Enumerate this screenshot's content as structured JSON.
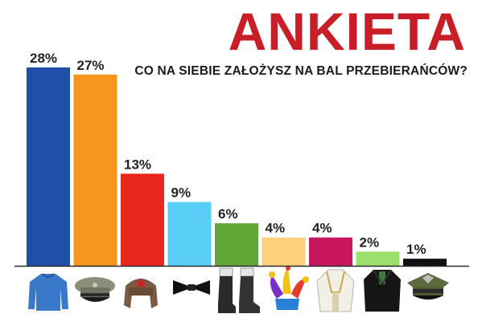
{
  "title": "ANKIETA",
  "subtitle": "CO NA SIEBIE ZAŁOŻYSZ NA BAL PRZEBIERAŃCÓW?",
  "colors": {
    "title": "#c81e28",
    "baseline": "#2a2a2a"
  },
  "chart_data": {
    "type": "bar",
    "title": "ANKIETA",
    "subtitle": "CO NA SIEBIE ZAŁOŻYSZ NA BAL PRZEBIERAŃCÓW?",
    "categories": [
      "sweater-icon",
      "military-cap-icon",
      "ushanka-hat-icon",
      "bow-tie-icon",
      "boots-icon",
      "jester-hat-icon",
      "chasuble-icon",
      "judge-robe-icon",
      "officer-cap-icon"
    ],
    "values": [
      28,
      27,
      13,
      9,
      6,
      4,
      4,
      2,
      1
    ],
    "labels": [
      "28%",
      "27%",
      "13%",
      "9%",
      "6%",
      "4%",
      "4%",
      "2%",
      "1%"
    ],
    "colors": [
      "#1f4fa8",
      "#f7961e",
      "#e8281e",
      "#58cdf5",
      "#5fa838",
      "#fdd07c",
      "#c8175c",
      "#9cdf6c",
      "#111111"
    ],
    "ylim": [
      0,
      28
    ],
    "grid": false,
    "legend": "none"
  }
}
